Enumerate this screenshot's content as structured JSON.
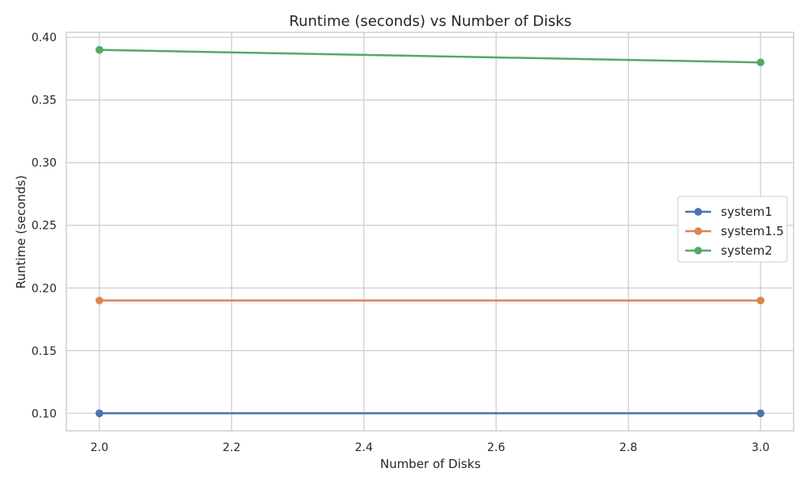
{
  "chart_data": {
    "type": "line",
    "title": "Runtime (seconds) vs Number of Disks",
    "xlabel": "Number of Disks",
    "ylabel": "Runtime (seconds)",
    "x": [
      2.0,
      3.0
    ],
    "xlim": [
      1.95,
      3.05
    ],
    "ylim": [
      0.086,
      0.404
    ],
    "xticks": [
      2.0,
      2.2,
      2.4,
      2.6,
      2.8,
      3.0
    ],
    "xtick_labels": [
      "2.0",
      "2.2",
      "2.4",
      "2.6",
      "2.8",
      "3.0"
    ],
    "yticks": [
      0.1,
      0.15,
      0.2,
      0.25,
      0.3,
      0.35,
      0.4
    ],
    "ytick_labels": [
      "0.10",
      "0.15",
      "0.20",
      "0.25",
      "0.30",
      "0.35",
      "0.40"
    ],
    "grid": true,
    "legend_position": "center-right",
    "series": [
      {
        "name": "system1",
        "values": [
          0.1,
          0.1
        ],
        "color": "#4c72b0"
      },
      {
        "name": "system1.5",
        "values": [
          0.19,
          0.19
        ],
        "color": "#dd8452"
      },
      {
        "name": "system2",
        "values": [
          0.39,
          0.38
        ],
        "color": "#55a868"
      }
    ]
  }
}
